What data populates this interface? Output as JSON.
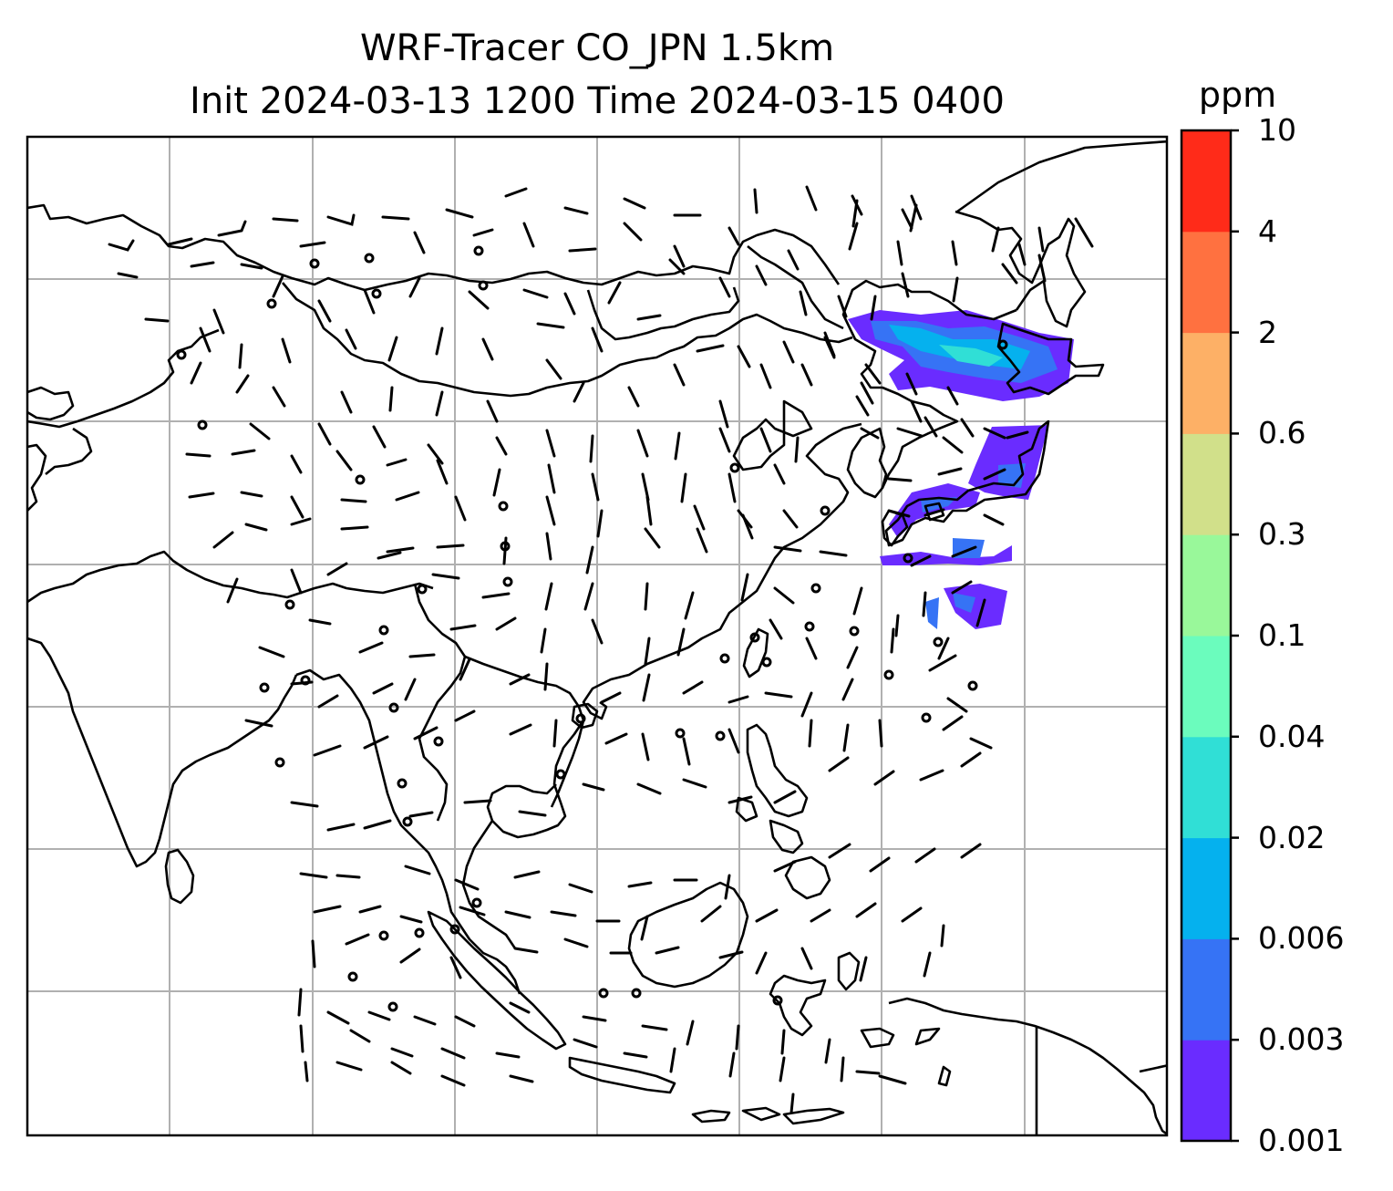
{
  "title": {
    "line1": "WRF-Tracer CO_JPN 1.5km",
    "line2": "Init 2024-03-13 1200 Time 2024-03-15 0400"
  },
  "colorbar": {
    "unit": "ppm",
    "levels": [
      "0.001",
      "0.003",
      "0.006",
      "0.02",
      "0.04",
      "0.1",
      "0.3",
      "0.6",
      "2",
      "4",
      "10"
    ],
    "colors": [
      "#6a2cff",
      "#3673f5",
      "#05b1ee",
      "#30dfd6",
      "#6bfcbd",
      "#99f89a",
      "#d1e08a",
      "#fdb066",
      "#ff7140",
      "#ff2b19"
    ]
  },
  "map": {
    "projection_grid": "lat/lon graticule",
    "field": "CO tracer concentration with wind barbs",
    "grid_color": "#b0b0b0",
    "coastline_color": "#000000"
  }
}
